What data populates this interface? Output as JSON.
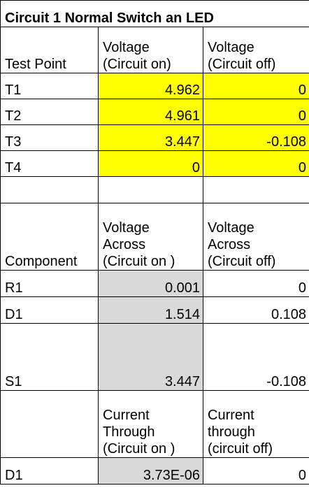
{
  "title": "Circuit 1 Normal Switch an LED",
  "section1": {
    "header": {
      "col1": "Test Point",
      "col2": [
        "Voltage",
        "(Circuit on)"
      ],
      "col3": [
        "Voltage",
        "(Circuit off)"
      ]
    },
    "rows": [
      {
        "label": "T1",
        "on": "4.962",
        "off": "0"
      },
      {
        "label": "T2",
        "on": "4.961",
        "off": "0"
      },
      {
        "label": "T3",
        "on": "3.447",
        "off": "-0.108"
      },
      {
        "label": "T4",
        "on": "0",
        "off": "0"
      }
    ]
  },
  "section2": {
    "header": {
      "col1": "Component",
      "col2": [
        "Voltage",
        "Across",
        "(Circuit on )"
      ],
      "col3": [
        "Voltage",
        "Across",
        "(Circuit off)"
      ]
    },
    "rows": [
      {
        "label": "R1",
        "on": "0.001",
        "off": "0"
      },
      {
        "label": "D1",
        "on": "1.514",
        "off": "0.108"
      },
      {
        "label": "S1",
        "on": "3.447",
        "off": "-0.108"
      }
    ]
  },
  "section3": {
    "header": {
      "col2": [
        "Current",
        "Through",
        "(Circuit on )"
      ],
      "col3": [
        "Current",
        "through",
        "(circuit off)"
      ]
    },
    "rows": [
      {
        "label": "D1",
        "on": "3.73E-06",
        "off": "0"
      }
    ]
  },
  "colors": {
    "highlight": "#ffff00",
    "gray": "#d9d9d9",
    "border": "#000000"
  }
}
